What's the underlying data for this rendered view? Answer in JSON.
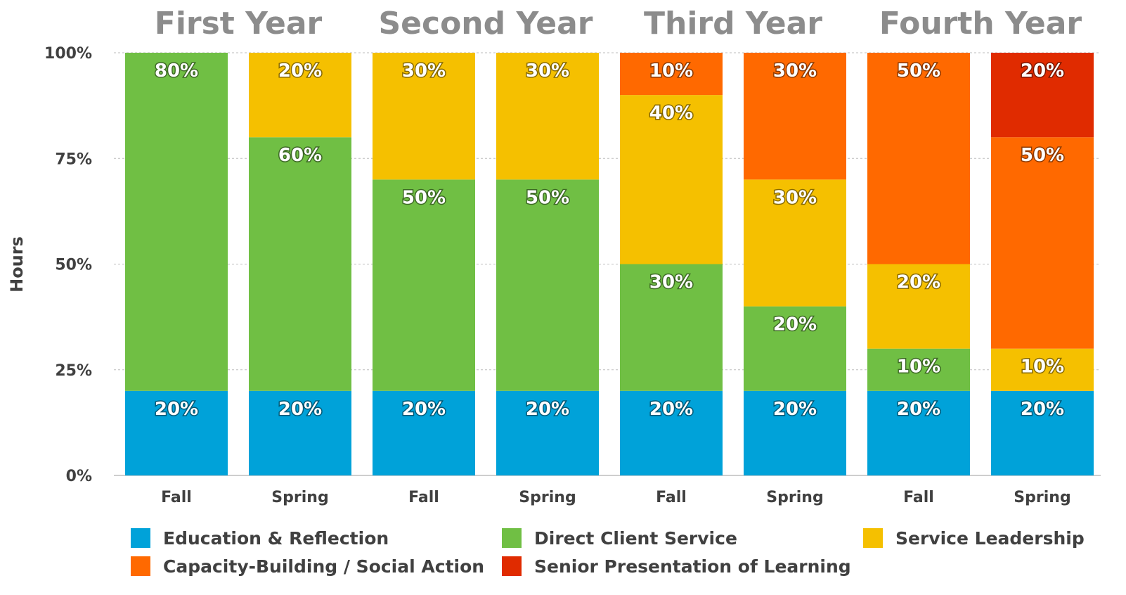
{
  "chart_data": {
    "type": "bar",
    "stacked": true,
    "ylabel": "Hours",
    "ylim": [
      0,
      100
    ],
    "yticks": [
      "0%",
      "25%",
      "50%",
      "75%",
      "100%"
    ],
    "ytick_values": [
      0,
      25,
      50,
      75,
      100
    ],
    "groups": [
      "First Year",
      "Second Year",
      "Third Year",
      "Fourth Year"
    ],
    "categories": [
      "Fall",
      "Spring",
      "Fall",
      "Spring",
      "Fall",
      "Spring",
      "Fall",
      "Spring"
    ],
    "series": [
      {
        "name": "Education & Reflection",
        "color": "#00a2d9",
        "values": [
          20,
          20,
          20,
          20,
          20,
          20,
          20,
          20
        ],
        "labels": [
          "20%",
          "20%",
          "20%",
          "20%",
          "20%",
          "20%",
          "20%",
          "20%"
        ]
      },
      {
        "name": "Direct Client Service",
        "color": "#70bf44",
        "values": [
          80,
          60,
          50,
          50,
          30,
          20,
          10,
          0
        ],
        "labels": [
          "80%",
          "60%",
          "50%",
          "50%",
          "30%",
          "20%",
          "10%",
          ""
        ]
      },
      {
        "name": "Service Leadership",
        "color": "#f5c000",
        "values": [
          0,
          20,
          30,
          30,
          40,
          30,
          20,
          10
        ],
        "labels": [
          "",
          "20%",
          "30%",
          "30%",
          "40%",
          "30%",
          "20%",
          "10%"
        ]
      },
      {
        "name": "Capacity-Building / Social Action",
        "color": "#ff6900",
        "values": [
          0,
          0,
          0,
          0,
          10,
          30,
          50,
          50
        ],
        "labels": [
          "",
          "",
          "",
          "",
          "10%",
          "30%",
          "50%",
          "50%"
        ]
      },
      {
        "name": "Senior Presentation of Learning",
        "color": "#e02b00",
        "values": [
          0,
          0,
          0,
          0,
          0,
          0,
          0,
          20
        ],
        "labels": [
          "",
          "",
          "",
          "",
          "",
          "",
          "",
          "20%"
        ]
      }
    ],
    "legend_position": "bottom",
    "grid": true
  }
}
